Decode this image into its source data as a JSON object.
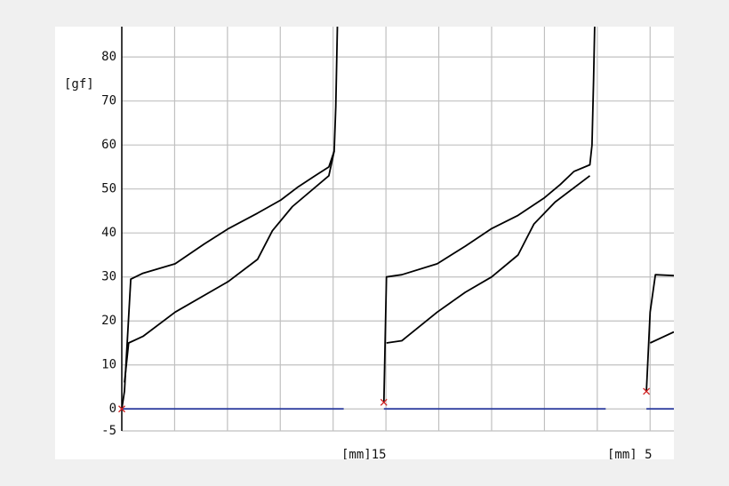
{
  "chart_data": {
    "type": "line",
    "y_label": "[gf]",
    "annotations": [
      "[mm]15",
      "[mm] 5"
    ],
    "ylim": [
      -5,
      86.9
    ],
    "yticks": [
      -5,
      0,
      10,
      20,
      30,
      40,
      50,
      60,
      70,
      80
    ],
    "xlim": [
      0,
      10.45
    ],
    "xgrid": [
      0,
      1,
      2,
      3,
      4,
      5,
      6,
      7,
      8,
      9,
      10
    ],
    "grid": true,
    "series": [
      {
        "kind": "line",
        "color": "#000000",
        "x": [
          0,
          0.05,
          0.17,
          0.39,
          1.01,
          1.56,
          2.02,
          2.57,
          3.01,
          3.34,
          3.66,
          3.92,
          4.02,
          4.05,
          4.08,
          null,
          4.96,
          5.01,
          5.3,
          5.97,
          6.5,
          7.0,
          7.5,
          8.0,
          8.3,
          8.56,
          8.86,
          8.9,
          8.93,
          8.95,
          null,
          9.93,
          10.0,
          10.1,
          10.45
        ],
        "values": [
          0,
          4,
          29.5,
          30.8,
          33,
          37.5,
          41,
          44.5,
          47.5,
          50.5,
          53,
          55,
          58.6,
          68.7,
          86.9,
          null,
          1.5,
          30,
          30.5,
          33,
          37,
          41,
          44,
          48,
          51,
          54,
          55.5,
          60,
          75,
          86.9,
          null,
          4,
          22,
          30.5,
          30.3
        ]
      },
      {
        "kind": "line",
        "color": "#000000",
        "x": [
          0.05,
          0.13,
          0.4,
          1.01,
          2.02,
          2.57,
          2.85,
          3.23,
          3.92,
          4.02,
          null,
          5.01,
          5.3,
          5.97,
          6.5,
          7.0,
          7.5,
          7.8,
          8.2,
          8.86,
          null,
          10.0,
          10.45
        ],
        "values": [
          6,
          15,
          16.5,
          22,
          29,
          34,
          40.5,
          46,
          53,
          58.6,
          null,
          15,
          15.5,
          22,
          26.5,
          30,
          35,
          42,
          47,
          53,
          null,
          15,
          17.5
        ]
      },
      {
        "kind": "line",
        "color": "#3040a0",
        "x": [
          0,
          4.2,
          null,
          4.96,
          9.16,
          null,
          9.93,
          10.45
        ],
        "values": [
          0,
          0,
          null,
          0,
          0,
          null,
          0,
          0
        ]
      },
      {
        "kind": "marker",
        "color": "#d02020",
        "x": [
          0,
          4.96,
          9.93
        ],
        "values": [
          0,
          1.5,
          4
        ]
      }
    ]
  }
}
